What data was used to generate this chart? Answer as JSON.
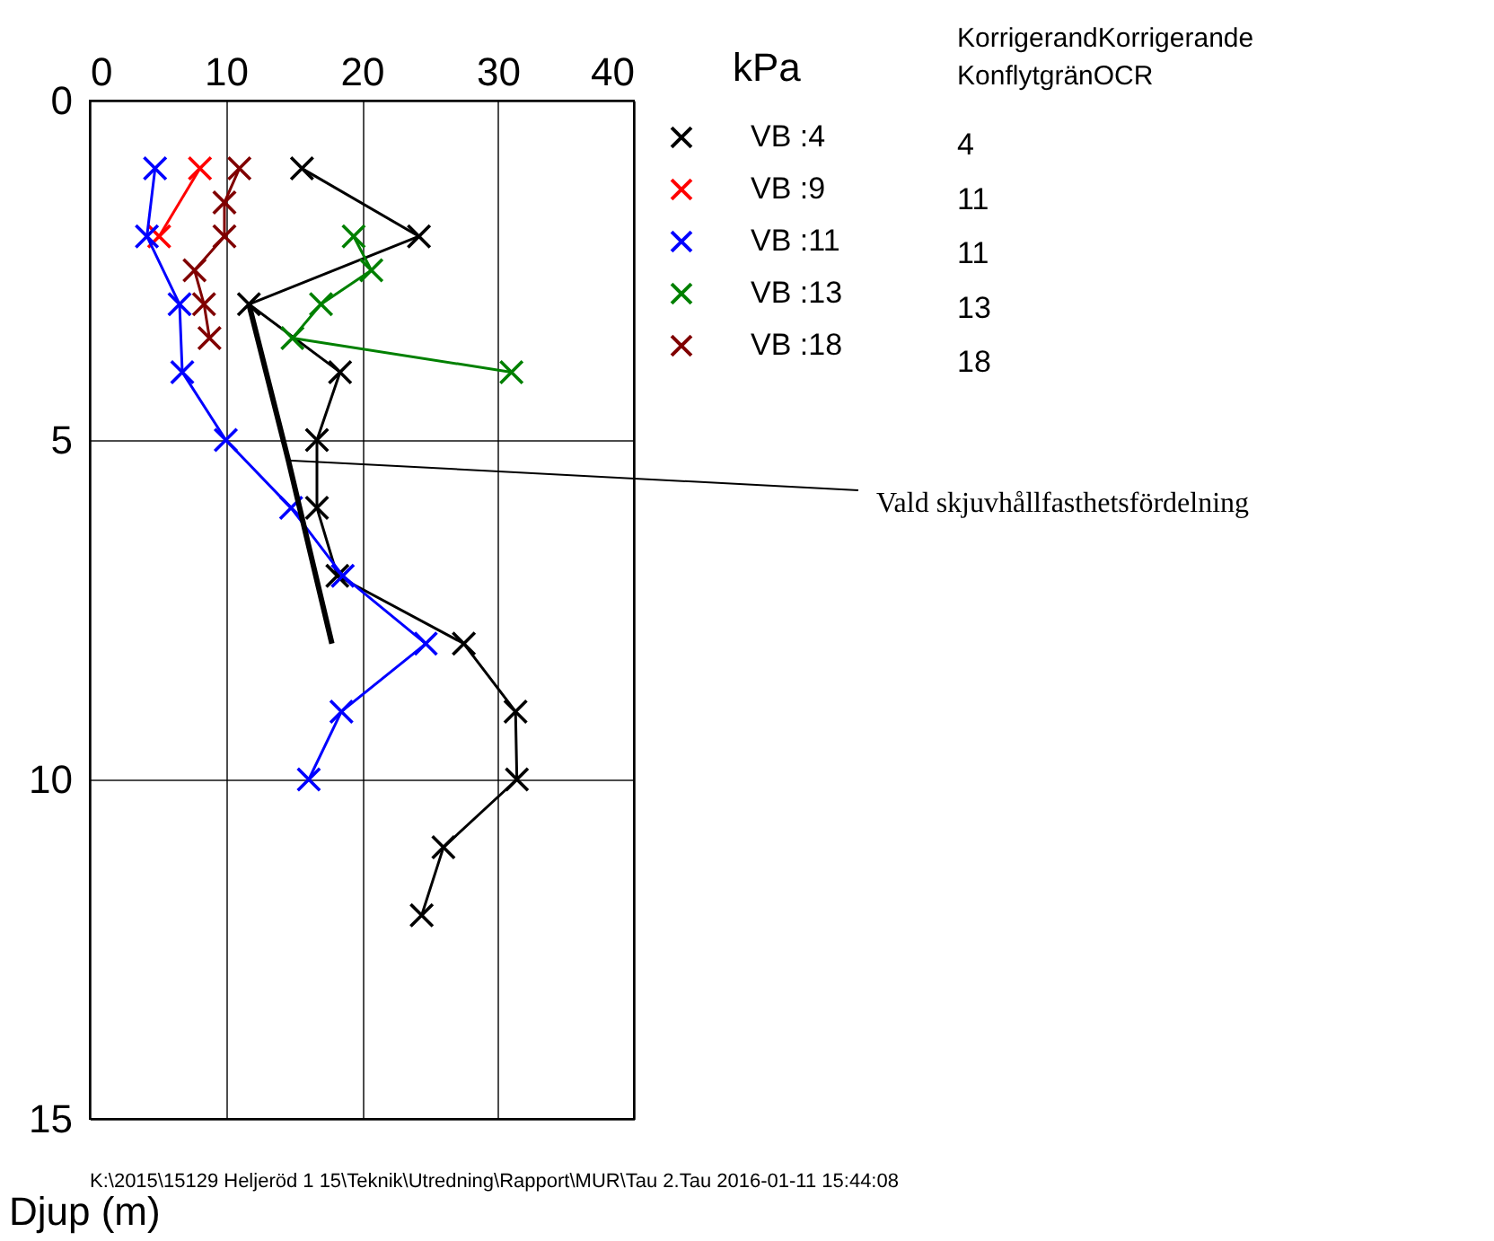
{
  "chart_data": {
    "type": "line",
    "xlabel": "kPa",
    "ylabel": "Djup (m)",
    "xlim": [
      0,
      40
    ],
    "xticks": [
      0,
      10,
      20,
      30,
      40
    ],
    "ylim": [
      15,
      0
    ],
    "yticks": [
      0,
      5,
      10,
      15
    ],
    "grid": true,
    "legend": "top right",
    "marker": "cross",
    "line_style": "solid",
    "series": [
      {
        "name": "VB :4",
        "color": "#000000",
        "x": [
          15.6,
          24.2,
          11.7,
          18.4,
          16.7,
          16.7,
          18.2,
          27.5,
          31.3,
          31.4,
          26.0,
          24.4
        ],
        "values": [
          1,
          2,
          3,
          4,
          5,
          6,
          7,
          8,
          9,
          10,
          11,
          12
        ]
      },
      {
        "name": "VB :9",
        "color": "#ff0000",
        "x": [
          8.1,
          5.1
        ],
        "values": [
          1,
          2
        ]
      },
      {
        "name": "VB :11",
        "color": "#0000ff",
        "x": [
          4.8,
          4.2,
          6.6,
          6.8,
          10.0,
          14.8,
          18.6,
          24.7,
          18.5,
          16.1
        ],
        "values": [
          1,
          2,
          3,
          4,
          5,
          6,
          7,
          8,
          9,
          10
        ]
      },
      {
        "name": "VB :13",
        "color": "#008000",
        "x": [
          19.4,
          20.7,
          17.0,
          14.9,
          31.0
        ],
        "values": [
          2,
          2.5,
          3,
          3.5,
          4
        ]
      },
      {
        "name": "VB :18",
        "color": "#800000",
        "x": [
          11.0,
          9.9,
          9.9,
          7.7,
          8.4,
          8.8
        ],
        "values": [
          1,
          1.5,
          2,
          2.5,
          3,
          3.5
        ]
      },
      {
        "color": "#000000",
        "marker": "none",
        "x": [
          11.7,
          14.6,
          17.8
        ],
        "values": [
          3,
          5.3,
          8
        ]
      }
    ],
    "annotations": [
      {
        "text": "Vald skjuvhållfasthetsfördelning",
        "x": 14.6,
        "y": 5.3
      },
      "KorrigerandKorrigerande",
      "KonflytgränOCR",
      "4",
      "11",
      "11",
      "13",
      "18",
      "K:\\2015\\15129 Heljeröd 1 15\\Teknik\\Utredning\\Rapport\\MUR\\Tau 2.Tau 2016-01-11 15:44:08"
    ]
  }
}
